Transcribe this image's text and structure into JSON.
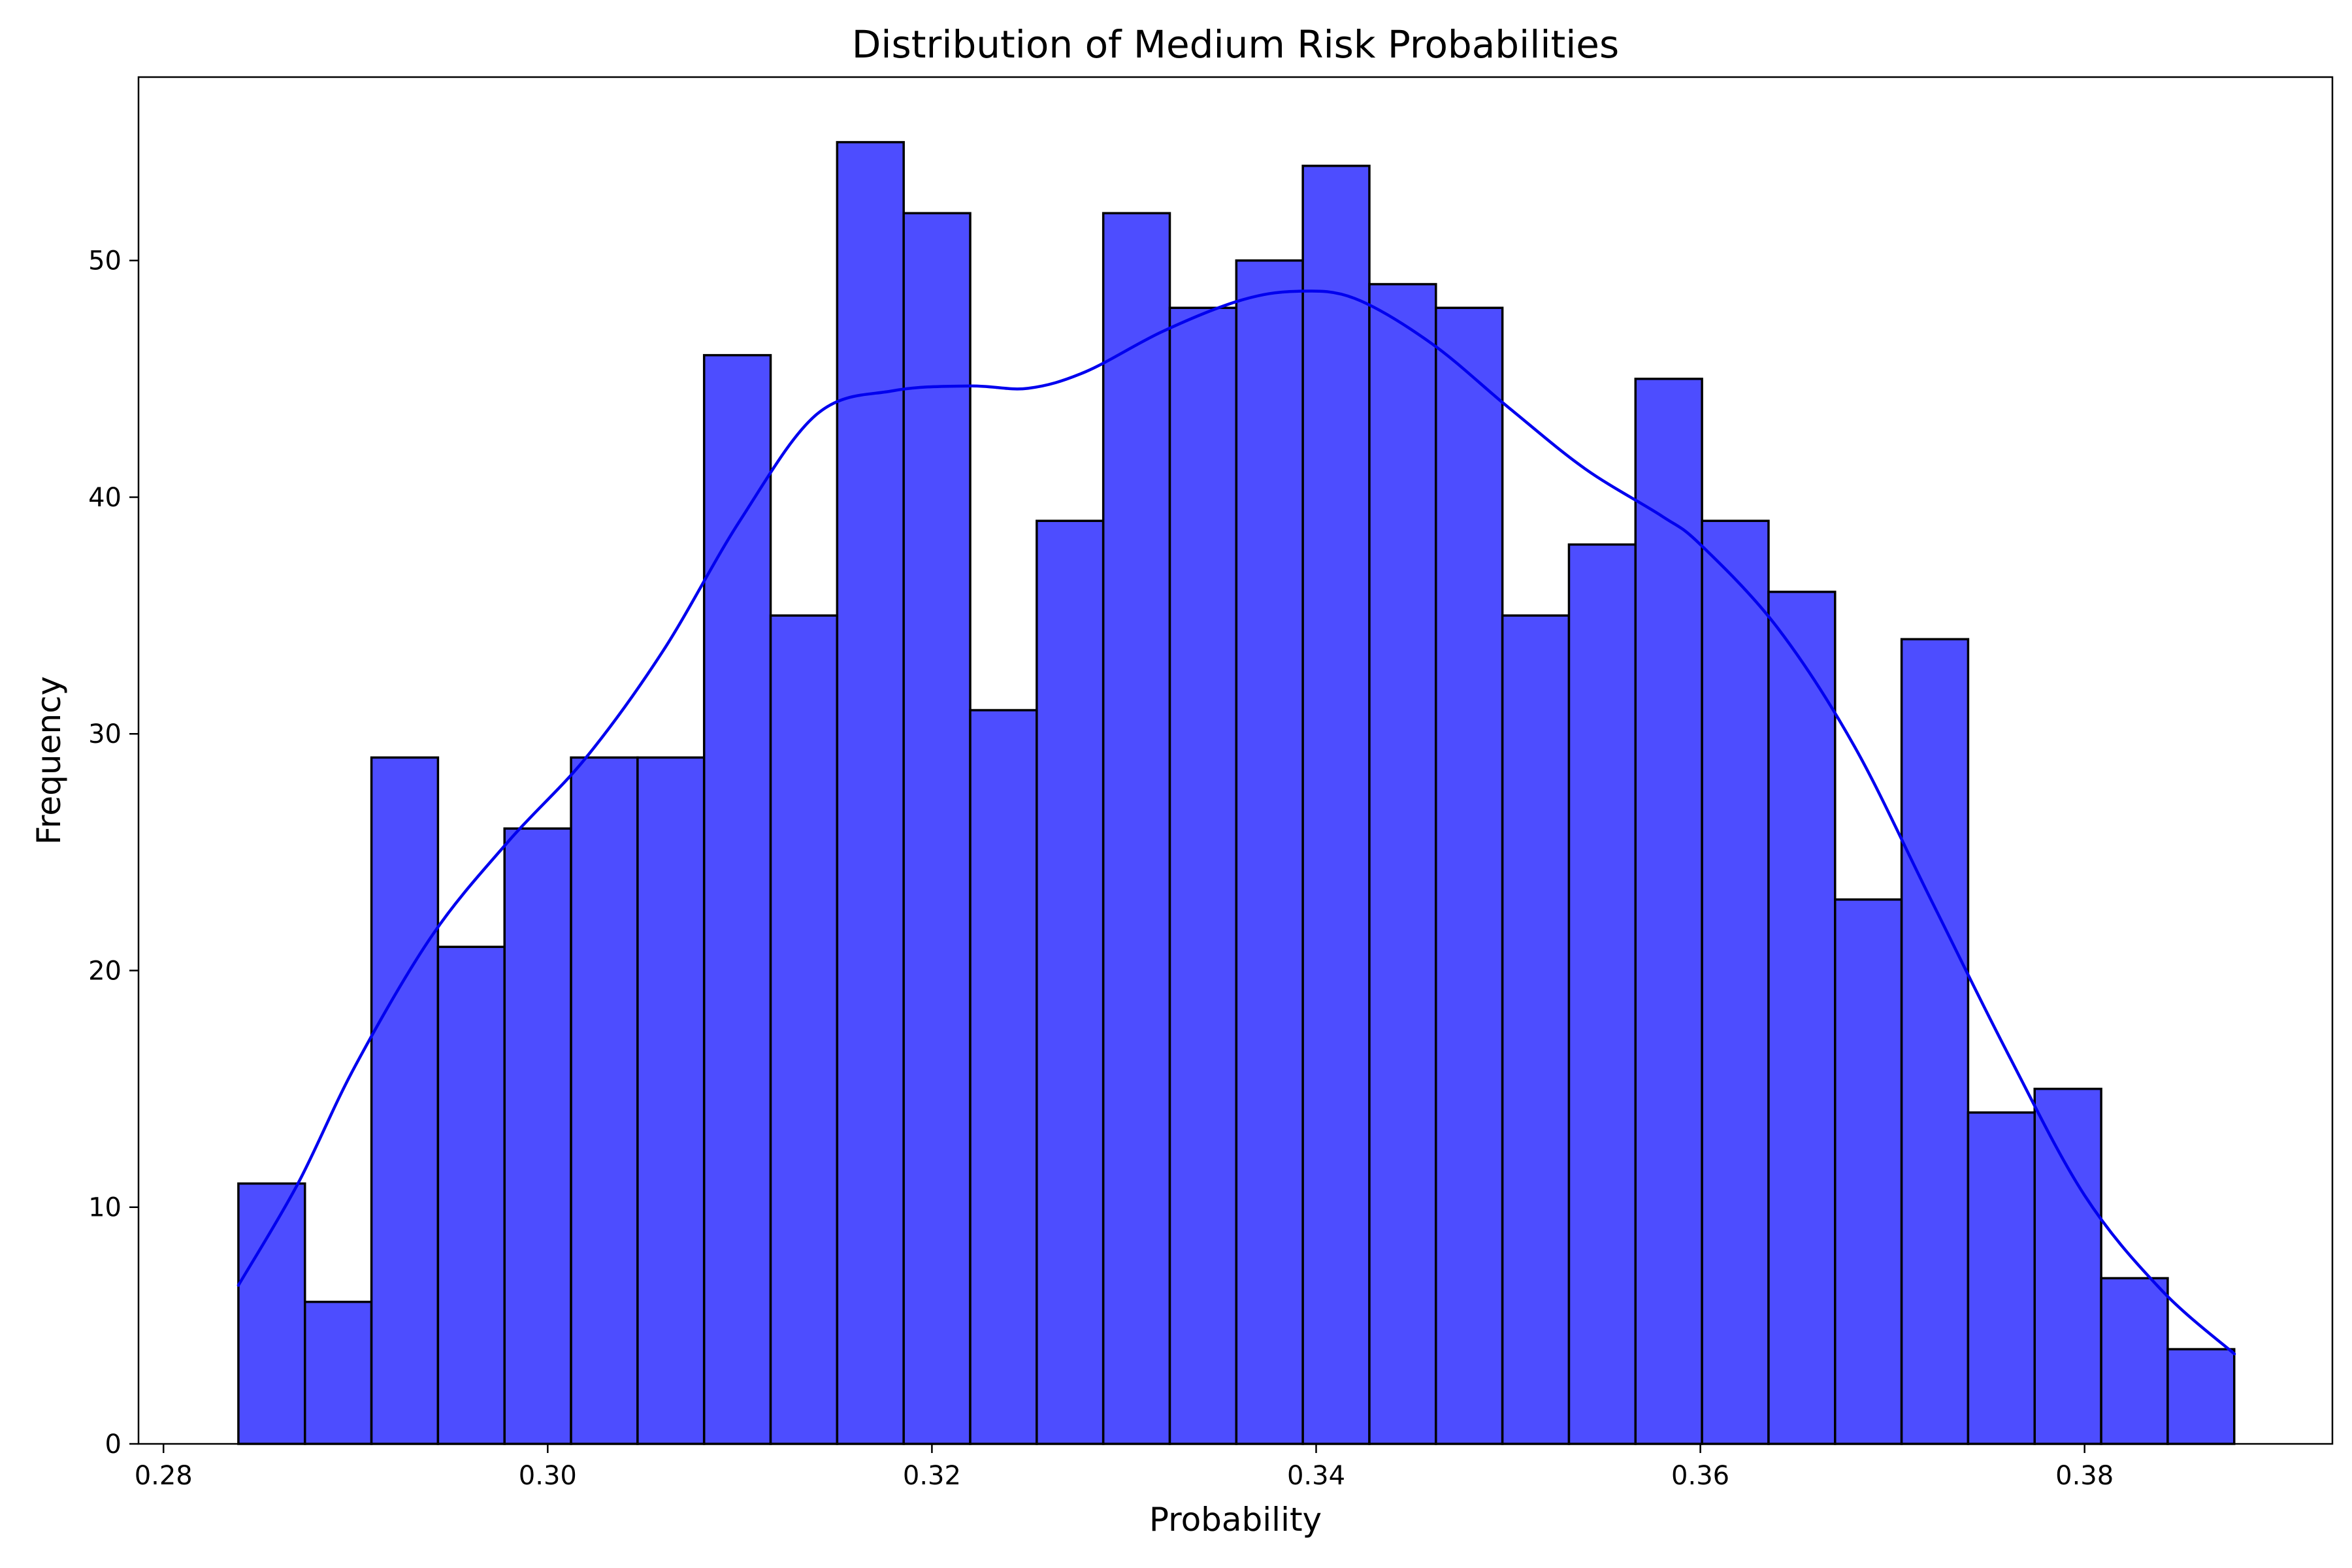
{
  "chart_data": {
    "type": "bar",
    "title": "Distribution of Medium Risk Probabilities",
    "xlabel": "Probability",
    "ylabel": "Frequency",
    "xlim": [
      0.2787,
      0.3929
    ],
    "ylim": [
      0,
      57.75
    ],
    "xticks": [
      0.28,
      0.3,
      0.32,
      0.34,
      0.36,
      0.38
    ],
    "xtick_labels": [
      "0.28",
      "0.30",
      "0.32",
      "0.34",
      "0.36",
      "0.38"
    ],
    "yticks": [
      0,
      10,
      20,
      30,
      40,
      50
    ],
    "ytick_labels": [
      "0",
      "10",
      "20",
      "30",
      "40",
      "50"
    ],
    "bin_start": 0.2839,
    "bin_width": 0.003463,
    "values": [
      11,
      6,
      29,
      21,
      26,
      29,
      29,
      46,
      35,
      55,
      52,
      31,
      39,
      52,
      48,
      50,
      54,
      49,
      48,
      35,
      38,
      45,
      39,
      36,
      23,
      34,
      14,
      15,
      7,
      4
    ],
    "kde": {
      "x": [
        0.2839,
        0.287,
        0.29,
        0.294,
        0.298,
        0.302,
        0.306,
        0.31,
        0.314,
        0.318,
        0.322,
        0.325,
        0.328,
        0.332,
        0.336,
        0.339,
        0.342,
        0.346,
        0.35,
        0.354,
        0.358,
        0.36,
        0.364,
        0.368,
        0.372,
        0.376,
        0.38,
        0.384,
        0.3878
      ],
      "y": [
        6.7,
        11.0,
        16.0,
        21.5,
        25.5,
        29.0,
        33.5,
        39.0,
        43.5,
        44.5,
        44.7,
        44.6,
        45.3,
        47.0,
        48.3,
        48.7,
        48.4,
        46.5,
        43.8,
        41.2,
        39.2,
        38.0,
        34.5,
        29.5,
        23.0,
        16.5,
        10.5,
        6.5,
        3.8
      ]
    },
    "colors": {
      "bar_fill": "#4d4dff",
      "bar_edge": "#000000",
      "kde_line": "#0000ee"
    }
  }
}
